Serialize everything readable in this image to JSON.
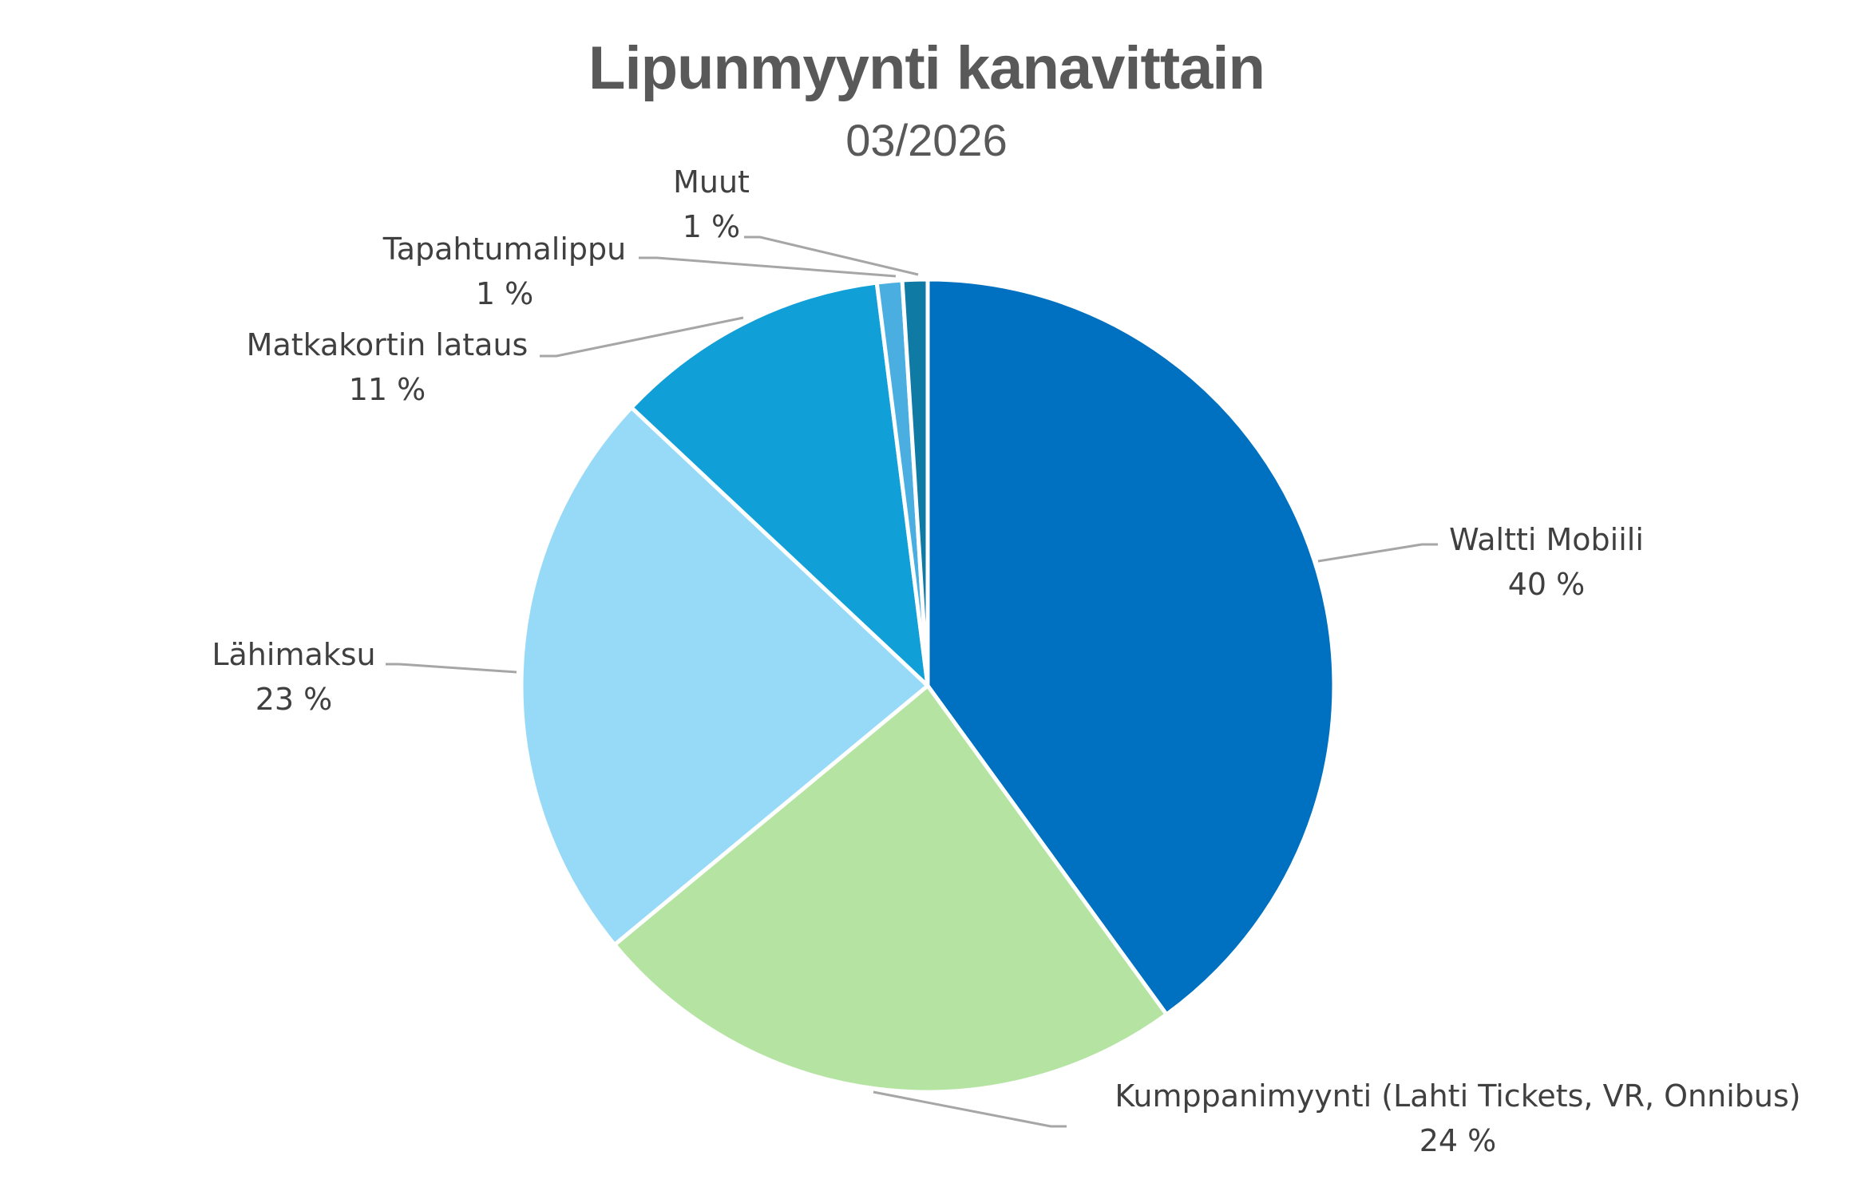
{
  "title": "Lipunmyynti kanavittain",
  "subtitle": "03/2026",
  "colors": {
    "title": "#595959",
    "label": "#404040",
    "leader_line": "#A6A6A6",
    "slice_border": "#FFFFFF"
  },
  "labels": [
    {
      "name": "Waltti Mobiili",
      "pct": "40 %"
    },
    {
      "name": "Kumppanimyynti (Lahti Tickets, VR, Onnibus)",
      "pct": "24 %"
    },
    {
      "name": "Lähimaksu",
      "pct": "23 %"
    },
    {
      "name": "Matkakortin lataus",
      "pct": "11 %"
    },
    {
      "name": "Tapahtumalippu",
      "pct": "1 %"
    },
    {
      "name": "Muut",
      "pct": "1 %"
    }
  ],
  "chart_data": {
    "type": "pie",
    "title": "Lipunmyynti kanavittain",
    "subtitle": "03/2026",
    "categories": [
      "Waltti Mobiili",
      "Kumppanimyynti (Lahti Tickets, VR, Onnibus)",
      "Lähimaksu",
      "Matkakortin lataus",
      "Tapahtumalippu",
      "Muut"
    ],
    "values": [
      40,
      24,
      23,
      11,
      1,
      1
    ],
    "unit": "%",
    "colors": [
      "#0070C0",
      "#B5E4A2",
      "#97DAF7",
      "#119FD8",
      "#4AAFE0",
      "#0F7AA3"
    ],
    "start_angle_deg": 0,
    "direction": "clockwise",
    "data_labels": "outside with leader lines (category name and percentage)",
    "legend": "none"
  }
}
